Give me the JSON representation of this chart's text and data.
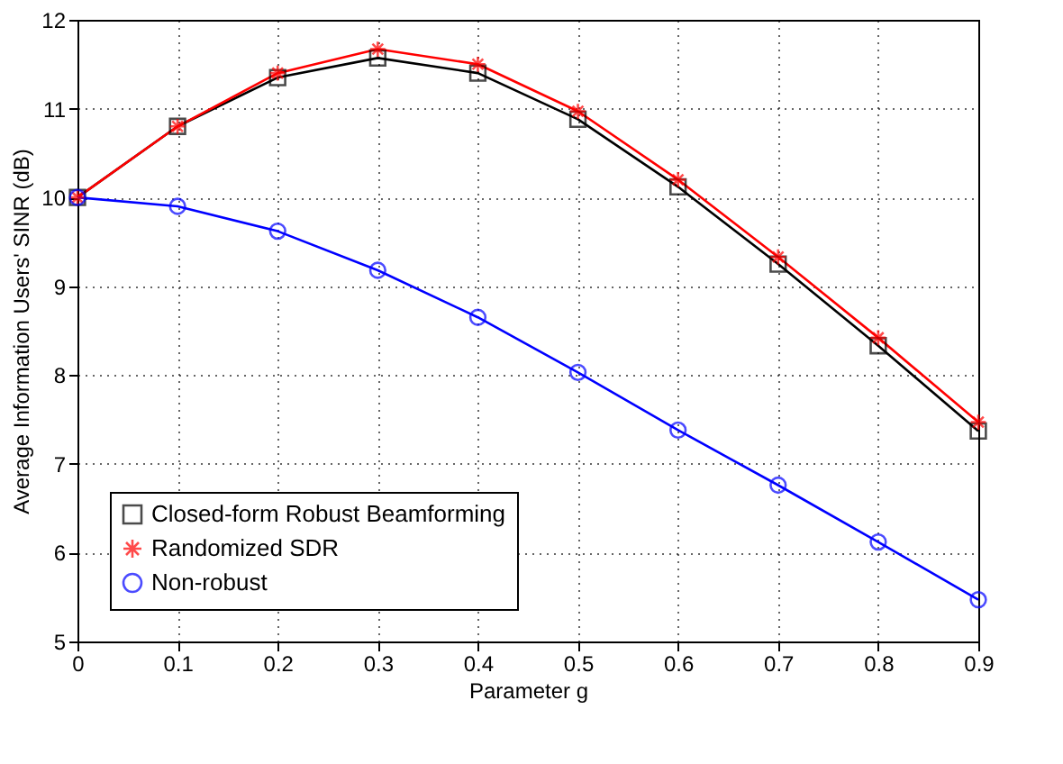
{
  "chart_data": {
    "type": "line",
    "xlabel": "Parameter g",
    "ylabel": "Average Information Users' SINR (dB)",
    "x": [
      0,
      0.1,
      0.2,
      0.3,
      0.4,
      0.5,
      0.6,
      0.7,
      0.8,
      0.9
    ],
    "series": [
      {
        "name": "Closed-form Robust Beamforming",
        "color": "#000000",
        "marker": "square",
        "values": [
          10,
          10.8,
          11.35,
          11.57,
          11.4,
          10.88,
          10.12,
          9.25,
          8.33,
          7.37
        ]
      },
      {
        "name": "Randomized SDR",
        "color": "#ff0000",
        "marker": "cross",
        "values": [
          10,
          10.8,
          11.4,
          11.67,
          11.5,
          10.97,
          10.2,
          9.33,
          8.42,
          7.47
        ]
      },
      {
        "name": "Non-robust",
        "color": "#0000ff",
        "marker": "circle",
        "values": [
          10,
          9.9,
          9.62,
          9.18,
          8.65,
          8.03,
          7.38,
          6.76,
          6.12,
          5.47
        ]
      }
    ],
    "xlim": [
      0,
      0.9
    ],
    "xticks": [
      0,
      0.1,
      0.2,
      0.3,
      0.4,
      0.5,
      0.6,
      0.7,
      0.8,
      0.9
    ],
    "ylim": [
      5,
      12
    ],
    "yticks": [
      5,
      6,
      7,
      8,
      9,
      10,
      11,
      12
    ],
    "grid": true,
    "legend": "bottom left",
    "line_style": "solid"
  }
}
